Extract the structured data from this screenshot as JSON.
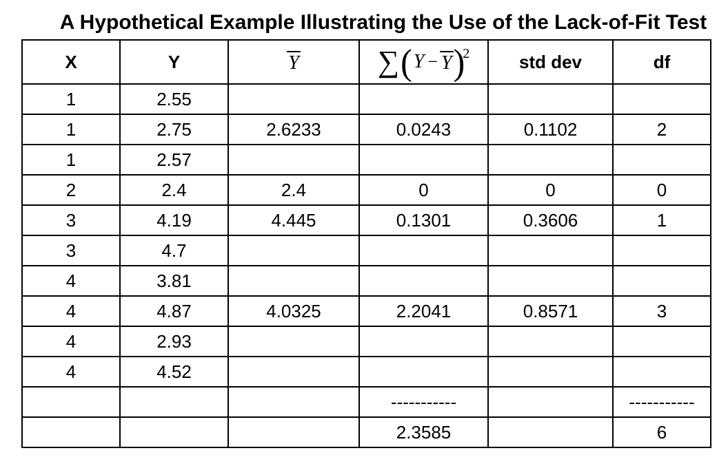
{
  "title": "A Hypothetical Example Illustrating the Use of the Lack-of-Fit Test",
  "colors": {
    "background": "#ffffff",
    "text": "#000000",
    "border": "#000000"
  },
  "table": {
    "headers": {
      "x": "X",
      "y": "Y",
      "ybar": "Y",
      "formula": {
        "sigma": "∑",
        "open": "(",
        "y": "Y",
        "minus": "−",
        "ybar": "Y",
        "close": ")",
        "exponent": "2"
      },
      "std_dev": "std dev",
      "df": "df"
    },
    "rows": [
      [
        "1",
        "2.55",
        "",
        "",
        "",
        ""
      ],
      [
        "1",
        "2.75",
        "2.6233",
        "0.0243",
        "0.1102",
        "2"
      ],
      [
        "1",
        "2.57",
        "",
        "",
        "",
        ""
      ],
      [
        "2",
        "2.4",
        "2.4",
        "0",
        "0",
        "0"
      ],
      [
        "3",
        "4.19",
        "4.445",
        "0.1301",
        "0.3606",
        "1"
      ],
      [
        "3",
        "4.7",
        "",
        "",
        "",
        ""
      ],
      [
        "4",
        "3.81",
        "",
        "",
        "",
        ""
      ],
      [
        "4",
        "4.87",
        "4.0325",
        "2.2041",
        "0.8571",
        "3"
      ],
      [
        "4",
        "2.93",
        "",
        "",
        "",
        ""
      ],
      [
        "4",
        "4.52",
        "",
        "",
        "",
        ""
      ],
      [
        "",
        "",
        "",
        "-----------",
        "",
        "-----------"
      ],
      [
        "",
        "",
        "",
        "2.3585",
        "",
        "6"
      ]
    ]
  }
}
